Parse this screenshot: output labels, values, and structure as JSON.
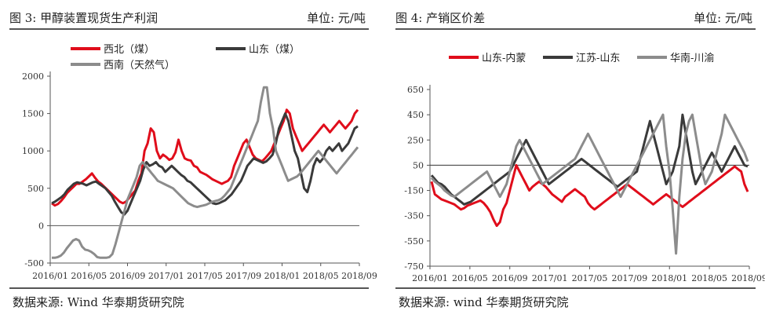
{
  "chart_data": [
    {
      "type": "line",
      "title": "图 3:  甲醇装置现货生产利润",
      "unit": "单位:  元/吨",
      "source": "数据来源:  Wind  华泰期货研究院",
      "ylim": [
        -500,
        2000
      ],
      "yticks": [
        "2000",
        "1500",
        "1000",
        "500",
        "0",
        "-500"
      ],
      "xlabels": [
        "2016/01",
        "2016/05",
        "2016/09",
        "2017/01",
        "2017/05",
        "2017/09",
        "2018/01",
        "2018/05",
        "2018/09"
      ],
      "legend_position": "top",
      "series": [
        {
          "name": "西北（煤）",
          "color": "#e00d1b",
          "values": [
            300,
            270,
            290,
            330,
            380,
            440,
            480,
            520,
            560,
            560,
            590,
            620,
            660,
            700,
            640,
            590,
            560,
            520,
            480,
            440,
            400,
            360,
            320,
            300,
            320,
            370,
            420,
            470,
            600,
            700,
            1000,
            1100,
            1300,
            1250,
            1000,
            900,
            950,
            920,
            880,
            900,
            980,
            1150,
            1000,
            900,
            880,
            870,
            800,
            780,
            720,
            700,
            680,
            650,
            620,
            600,
            580,
            560,
            580,
            600,
            650,
            800,
            900,
            1000,
            1100,
            1150,
            1050,
            950,
            900,
            880,
            860,
            900,
            950,
            1000,
            1100,
            1200,
            1300,
            1400,
            1550,
            1500,
            1300,
            1200,
            1100,
            1000,
            1050,
            1100,
            1150,
            1200,
            1250,
            1300,
            1350,
            1300,
            1250,
            1300,
            1350,
            1400,
            1350,
            1300,
            1350,
            1400,
            1500,
            1550
          ]
        },
        {
          "name": "山东（煤）",
          "color": "#3a3a3a",
          "values": [
            300,
            320,
            350,
            380,
            420,
            480,
            520,
            560,
            580,
            570,
            560,
            540,
            560,
            580,
            590,
            560,
            530,
            500,
            450,
            400,
            320,
            250,
            180,
            150,
            200,
            300,
            400,
            500,
            600,
            750,
            850,
            800,
            820,
            850,
            800,
            780,
            720,
            760,
            800,
            760,
            720,
            680,
            650,
            600,
            580,
            540,
            500,
            460,
            420,
            380,
            340,
            300,
            290,
            300,
            320,
            340,
            380,
            420,
            480,
            540,
            600,
            700,
            800,
            850,
            900,
            880,
            860,
            840,
            860,
            900,
            950,
            1100,
            1300,
            1400,
            1500,
            1400,
            1200,
            1000,
            900,
            700,
            500,
            450,
            600,
            800,
            900,
            850,
            900,
            1000,
            1050,
            1000,
            1050,
            1100,
            1000,
            1050,
            1100,
            1200,
            1300,
            1330
          ]
        },
        {
          "name": "西南（天然气）",
          "color": "#8c8c8c",
          "values": [
            -430,
            -430,
            -420,
            -400,
            -360,
            -300,
            -250,
            -200,
            -180,
            -200,
            -280,
            -320,
            -330,
            -350,
            -380,
            -420,
            -430,
            -430,
            -430,
            -420,
            -380,
            -250,
            -100,
            50,
            200,
            350,
            450,
            550,
            650,
            800,
            850,
            800,
            750,
            700,
            650,
            600,
            580,
            560,
            540,
            520,
            500,
            460,
            420,
            380,
            340,
            300,
            280,
            260,
            250,
            260,
            270,
            280,
            300,
            320,
            330,
            340,
            360,
            400,
            450,
            500,
            600,
            700,
            800,
            900,
            1000,
            1100,
            1200,
            1300,
            1400,
            1650,
            1850,
            1850,
            1500,
            1300,
            1000,
            900,
            800,
            700,
            600,
            620,
            640,
            660,
            700,
            750,
            800,
            850,
            900,
            950,
            1000,
            950,
            900,
            850,
            800,
            750,
            700,
            750,
            800,
            850,
            900,
            950,
            1000,
            1050
          ]
        }
      ]
    },
    {
      "type": "line",
      "title": "图 4:  产销区价差",
      "unit": "单位:  元/吨",
      "source": "数据来源:  wind  华泰期货研究院",
      "ylim": [
        -750,
        650
      ],
      "yticks": [
        "650",
        "450",
        "250",
        "50",
        "-150",
        "-350",
        "-550",
        "-750"
      ],
      "xlabels": [
        "2016/01",
        "2016/05",
        "2016/09",
        "2017/01",
        "2017/05",
        "2017/09",
        "2018/01",
        "2018/05",
        "2018/09"
      ],
      "legend_position": "top",
      "series": [
        {
          "name": "山东-内蒙",
          "color": "#e00d1b",
          "values": [
            -80,
            -180,
            -200,
            -220,
            -230,
            -240,
            -250,
            -260,
            -280,
            -300,
            -290,
            -270,
            -260,
            -250,
            -240,
            -230,
            -250,
            -280,
            -320,
            -380,
            -430,
            -400,
            -300,
            -250,
            -150,
            -50,
            50,
            0,
            -50,
            -100,
            -150,
            -120,
            -100,
            -80,
            -100,
            -120,
            -150,
            -180,
            -200,
            -220,
            -240,
            -200,
            -180,
            -160,
            -140,
            -160,
            -180,
            -200,
            -250,
            -280,
            -300,
            -280,
            -260,
            -240,
            -220,
            -200,
            -180,
            -160,
            -140,
            -120,
            -100,
            -120,
            -140,
            -160,
            -180,
            -200,
            -220,
            -240,
            -260,
            -240,
            -220,
            -200,
            -180,
            -200,
            -220,
            -240,
            -260,
            -280,
            -260,
            -240,
            -220,
            -200,
            -180,
            -160,
            -140,
            -120,
            -100,
            -80,
            -60,
            -40,
            -20,
            0,
            20,
            40,
            20,
            0,
            -100,
            -160
          ]
        },
        {
          "name": "江苏-山东",
          "color": "#3a3a3a",
          "values": [
            -30,
            -60,
            -90,
            -100,
            -120,
            -150,
            -180,
            -200,
            -220,
            -240,
            -260,
            -250,
            -240,
            -220,
            -200,
            -180,
            -160,
            -140,
            -120,
            -100,
            -80,
            -60,
            -40,
            -20,
            0,
            50,
            100,
            150,
            200,
            250,
            200,
            150,
            100,
            50,
            0,
            -50,
            -100,
            -80,
            -60,
            -40,
            -20,
            0,
            20,
            40,
            60,
            80,
            100,
            80,
            60,
            40,
            20,
            0,
            -20,
            -40,
            -60,
            -80,
            -100,
            -120,
            -100,
            -80,
            -60,
            -40,
            -20,
            0,
            100,
            200,
            300,
            400,
            300,
            200,
            100,
            0,
            -100,
            -50,
            0,
            100,
            200,
            450,
            300,
            150,
            0,
            -100,
            -50,
            0,
            50,
            100,
            150,
            100,
            50,
            0,
            50,
            100,
            150,
            200,
            150,
            100,
            50,
            40
          ]
        },
        {
          "name": "华南-川渝",
          "color": "#8c8c8c",
          "values": [
            -50,
            -80,
            -100,
            -120,
            -150,
            -170,
            -190,
            -200,
            -180,
            -160,
            -140,
            -120,
            -100,
            -80,
            -60,
            -40,
            -20,
            0,
            -50,
            -100,
            -150,
            -200,
            -150,
            -100,
            0,
            100,
            200,
            250,
            200,
            150,
            100,
            50,
            0,
            -50,
            -100,
            -80,
            -60,
            -40,
            -20,
            0,
            20,
            40,
            60,
            80,
            100,
            150,
            200,
            250,
            300,
            250,
            200,
            150,
            100,
            50,
            0,
            -50,
            -100,
            -150,
            -200,
            -150,
            -100,
            -50,
            0,
            50,
            100,
            150,
            200,
            250,
            300,
            350,
            400,
            450,
            200,
            0,
            -300,
            -650,
            -200,
            100,
            300,
            400,
            450,
            300,
            150,
            0,
            -100,
            -50,
            0,
            100,
            200,
            300,
            450,
            400,
            350,
            300,
            250,
            200,
            150,
            80
          ]
        }
      ]
    }
  ]
}
